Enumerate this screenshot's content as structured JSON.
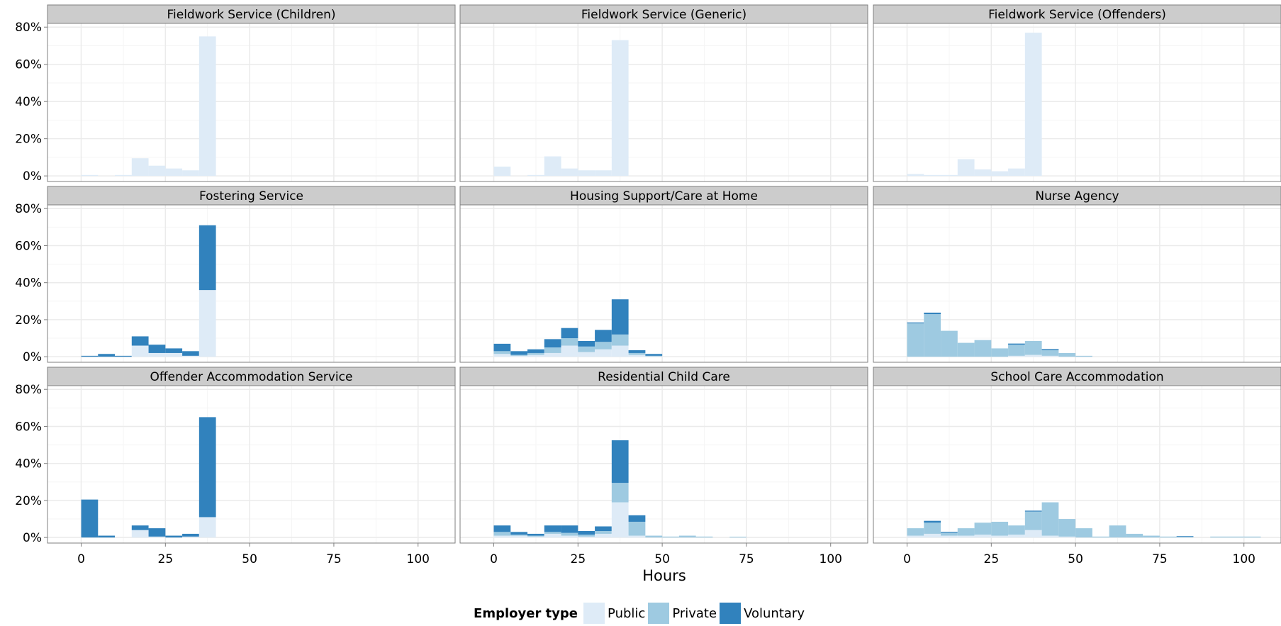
{
  "chart_data": {
    "type": "bar",
    "stacked": true,
    "layout": "facet-grid-3x3",
    "bin_width": 5,
    "xlabel": "Hours",
    "ylabel": "",
    "x_ticks": [
      "0",
      "25",
      "50",
      "75",
      "100"
    ],
    "x_tick_values": [
      0,
      25,
      50,
      75,
      100
    ],
    "y_ticks": [
      "0%",
      "20%",
      "40%",
      "60%",
      "80%"
    ],
    "y_tick_values": [
      0,
      20,
      40,
      60,
      80
    ],
    "xlim": [
      -10,
      111
    ],
    "ylim": [
      -3,
      82
    ],
    "grid": true,
    "legend": {
      "title": "Employer type",
      "position": "bottom",
      "entries": [
        "Public",
        "Private",
        "Voluntary"
      ]
    },
    "colors": {
      "Public": "#deebf7",
      "Private": "#9ecae1",
      "Voluntary": "#3182bd"
    },
    "series_order": [
      "Public",
      "Private",
      "Voluntary"
    ],
    "panels": [
      {
        "title": "Fieldwork Service (Children)",
        "bins": [
          0,
          5,
          10,
          15,
          20,
          25,
          30,
          35
        ],
        "Public": [
          0.5,
          0,
          0.5,
          9.5,
          5.5,
          4,
          3,
          75
        ]
      },
      {
        "title": "Fieldwork Service (Generic)",
        "bins": [
          0,
          5,
          10,
          15,
          20,
          25,
          30,
          35
        ],
        "Public": [
          5,
          0,
          0.5,
          10.5,
          4,
          3,
          3,
          73
        ]
      },
      {
        "title": "Fieldwork Service (Offenders)",
        "bins": [
          0,
          5,
          10,
          15,
          20,
          25,
          30,
          35
        ],
        "Public": [
          1,
          0.5,
          0.5,
          9,
          3.5,
          2.5,
          4,
          77
        ]
      },
      {
        "title": "Fostering Service",
        "bins": [
          0,
          5,
          10,
          15,
          20,
          25,
          30,
          35
        ],
        "Public": [
          0,
          0,
          0,
          6,
          2,
          2,
          0.5,
          36
        ],
        "Private": [
          0,
          0,
          0,
          0,
          0,
          0,
          0,
          0
        ],
        "Voluntary": [
          0.5,
          1.5,
          0.5,
          5,
          4.5,
          2.5,
          2.5,
          35
        ]
      },
      {
        "title": "Housing Support/Care at Home",
        "bins": [
          0,
          5,
          10,
          15,
          20,
          25,
          30,
          35,
          40,
          45
        ],
        "Public": [
          1.5,
          0.5,
          1,
          2,
          6,
          2.5,
          4,
          6,
          1,
          0.2
        ],
        "Private": [
          1.5,
          0.5,
          1,
          3,
          4,
          3,
          4,
          6,
          1,
          0.3
        ],
        "Voluntary": [
          4,
          2,
          2,
          4.5,
          5.5,
          3,
          6.5,
          19,
          1.5,
          1
        ]
      },
      {
        "title": "Nurse Agency",
        "bins": [
          0,
          5,
          10,
          15,
          20,
          25,
          30,
          35,
          40,
          45,
          50
        ],
        "Public": [
          0,
          0,
          0,
          0,
          0,
          0,
          0.5,
          1,
          0.5,
          0,
          0
        ],
        "Private": [
          18,
          23,
          14,
          7.5,
          9,
          4.5,
          6,
          7.5,
          3,
          2,
          0.5
        ],
        "Voluntary": [
          0.5,
          0.8,
          0,
          0,
          0,
          0,
          0.6,
          0,
          0.6,
          0,
          0
        ]
      },
      {
        "title": "Offender Accommodation Service",
        "bins": [
          0,
          5,
          10,
          15,
          20,
          25,
          30,
          35
        ],
        "Public": [
          0,
          0,
          0,
          4,
          0.5,
          0,
          0.5,
          11
        ],
        "Private": [
          0,
          0,
          0,
          0,
          0,
          0,
          0,
          0
        ],
        "Voluntary": [
          20.5,
          1,
          0,
          2.5,
          4.5,
          1,
          1.5,
          54
        ]
      },
      {
        "title": "Residential Child Care",
        "bins": [
          0,
          5,
          10,
          15,
          20,
          25,
          30,
          35,
          40,
          45,
          50,
          55,
          60,
          65,
          70
        ],
        "Public": [
          1,
          1,
          0.5,
          2,
          1,
          0.5,
          2,
          19,
          1,
          0,
          0,
          0,
          0,
          0,
          0
        ],
        "Private": [
          2,
          0.5,
          0.5,
          1,
          1.5,
          1,
          1.5,
          10.5,
          7.5,
          1,
          0.5,
          1,
          0.5,
          0,
          0.4
        ],
        "Voluntary": [
          3.5,
          1.5,
          1,
          3.5,
          4,
          2,
          2.5,
          23,
          3.5,
          0,
          0,
          0,
          0,
          0,
          0
        ]
      },
      {
        "title": "School Care Accommodation",
        "bins": [
          0,
          5,
          10,
          15,
          20,
          25,
          30,
          35,
          40,
          45,
          50,
          55,
          60,
          65,
          70,
          75,
          80,
          85,
          90,
          95,
          100
        ],
        "Public": [
          1,
          2,
          1,
          1,
          1.5,
          1,
          1.5,
          4,
          1,
          0.5,
          0,
          0,
          0,
          0,
          0,
          0,
          0,
          0,
          0,
          0,
          0
        ],
        "Private": [
          4,
          6,
          1.5,
          4,
          6.5,
          7.5,
          5,
          10,
          18,
          9.5,
          5,
          0.5,
          6.5,
          2,
          1,
          0.5,
          0.5,
          0,
          0.5,
          0.5,
          0.5
        ],
        "Voluntary": [
          0,
          1,
          0.5,
          0,
          0,
          0,
          0,
          0.5,
          0,
          0,
          0,
          0,
          0,
          0,
          0,
          0,
          0.3,
          0,
          0,
          0,
          0
        ]
      }
    ]
  }
}
